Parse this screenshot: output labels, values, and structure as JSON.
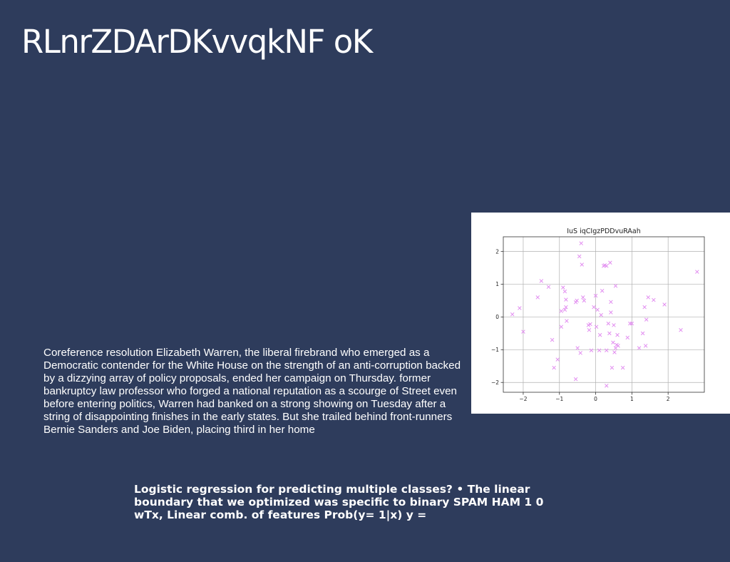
{
  "slide": {
    "title": "RLnrZDArDKvvqkNF oK",
    "body_text": "Coreference resolution Elizabeth Warren, the liberal firebrand who emerged as a Democratic contender for the White House on the strength of an anti-corruption backed by a dizzying array of policy proposals, ended her campaign on Thursday. former bankruptcy law professor who forged a national reputation as a scourge of Street even before entering politics, Warren had banked on a strong showing on Tuesday after a string of disappointing finishes in the early states. But she trailed behind front-runners Bernie Sanders and Joe Biden, placing third in her home",
    "bottom_text": "Logistic regression for predicting multiple classes? • The linear boundary that we optimized was specific to binary SPAM HAM 1 0 wTx, Linear comb. of features Prob(y= 1|x) y ="
  },
  "chart_data": {
    "type": "scatter",
    "title": "IuS iqCIgzPDDvuRAah",
    "xlabel": "",
    "ylabel": "",
    "xlim": [
      -2.55,
      3.0
    ],
    "ylim": [
      -2.3,
      2.45
    ],
    "xticks": [
      -2,
      -1,
      0,
      1,
      2
    ],
    "yticks": [
      -2,
      -1,
      0,
      1,
      2
    ],
    "grid": true,
    "marker": "x",
    "color": "#e28ef0",
    "points": [
      [
        -2.3,
        0.08
      ],
      [
        -2.1,
        0.27
      ],
      [
        -2.0,
        -0.45
      ],
      [
        -1.6,
        0.6
      ],
      [
        -1.5,
        1.1
      ],
      [
        -1.3,
        0.92
      ],
      [
        -1.2,
        -0.7
      ],
      [
        -1.15,
        -1.55
      ],
      [
        -1.05,
        -1.3
      ],
      [
        -0.95,
        0.18
      ],
      [
        -0.95,
        -0.3
      ],
      [
        -0.9,
        0.9
      ],
      [
        -0.85,
        0.78
      ],
      [
        -0.82,
        0.53
      ],
      [
        -0.8,
        -0.12
      ],
      [
        -0.85,
        0.22
      ],
      [
        -0.82,
        0.3
      ],
      [
        -0.55,
        -1.9
      ],
      [
        -0.55,
        0.45
      ],
      [
        -0.52,
        0.5
      ],
      [
        -0.5,
        -0.95
      ],
      [
        -0.45,
        1.85
      ],
      [
        -0.42,
        -1.1
      ],
      [
        -0.4,
        2.25
      ],
      [
        -0.38,
        1.6
      ],
      [
        -0.35,
        0.6
      ],
      [
        -0.32,
        0.5
      ],
      [
        -0.2,
        -0.25
      ],
      [
        -0.18,
        -0.4
      ],
      [
        -0.15,
        -0.22
      ],
      [
        -0.12,
        -1.02
      ],
      [
        -0.05,
        0.3
      ],
      [
        0.0,
        0.65
      ],
      [
        0.02,
        -0.3
      ],
      [
        0.05,
        0.22
      ],
      [
        0.1,
        -1.02
      ],
      [
        0.12,
        -0.55
      ],
      [
        0.15,
        0.06
      ],
      [
        0.18,
        0.8
      ],
      [
        0.22,
        1.56
      ],
      [
        0.25,
        1.58
      ],
      [
        0.3,
        1.56
      ],
      [
        0.3,
        -2.1
      ],
      [
        0.3,
        -1.02
      ],
      [
        0.35,
        -0.2
      ],
      [
        0.38,
        -0.5
      ],
      [
        0.4,
        1.66
      ],
      [
        0.42,
        0.46
      ],
      [
        0.42,
        0.14
      ],
      [
        0.45,
        -1.55
      ],
      [
        0.48,
        -0.78
      ],
      [
        0.5,
        -0.25
      ],
      [
        0.52,
        -1.08
      ],
      [
        0.55,
        0.95
      ],
      [
        0.55,
        -0.95
      ],
      [
        0.58,
        -0.85
      ],
      [
        0.6,
        -0.55
      ],
      [
        0.62,
        -0.88
      ],
      [
        0.75,
        -1.55
      ],
      [
        0.88,
        -0.63
      ],
      [
        0.95,
        -0.2
      ],
      [
        1.0,
        -0.2
      ],
      [
        1.2,
        -0.95
      ],
      [
        1.3,
        -0.5
      ],
      [
        1.35,
        0.3
      ],
      [
        1.38,
        -0.88
      ],
      [
        1.4,
        -0.08
      ],
      [
        1.45,
        0.6
      ],
      [
        1.6,
        0.52
      ],
      [
        1.9,
        0.38
      ],
      [
        2.35,
        -0.4
      ],
      [
        2.8,
        1.38
      ]
    ]
  }
}
